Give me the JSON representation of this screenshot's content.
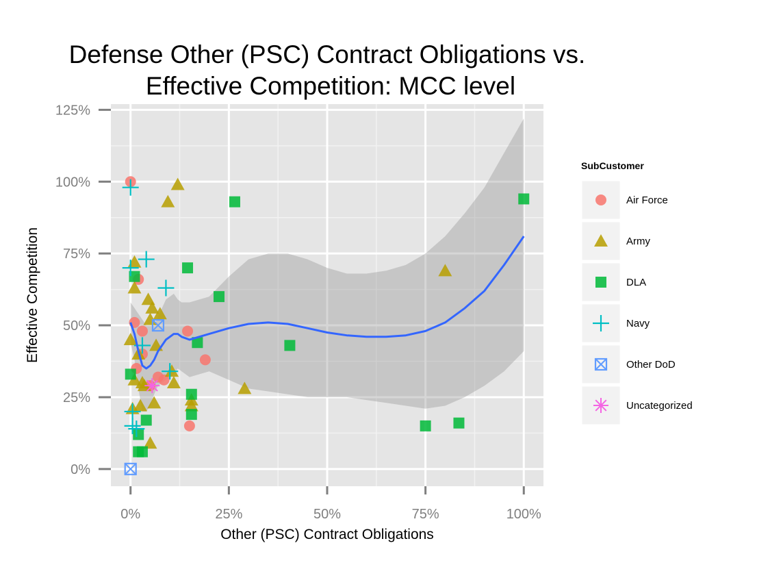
{
  "chart_data": {
    "type": "scatter",
    "title_line1": "Defense Other (PSC) Contract Obligations vs.",
    "title_line2": "Effective Competition: MCC level",
    "xlabel": "Other (PSC) Contract Obligations",
    "ylabel": "Effective Competition",
    "xlim": [
      -0.05,
      1.05
    ],
    "ylim": [
      -0.06,
      1.27
    ],
    "x_ticks": [
      0,
      0.25,
      0.5,
      0.75,
      1.0
    ],
    "x_tick_labels": [
      "0%",
      "25%",
      "50%",
      "75%",
      "100%"
    ],
    "y_ticks": [
      0,
      0.25,
      0.5,
      0.75,
      1.0,
      1.25
    ],
    "y_tick_labels": [
      "0%",
      "25%",
      "50%",
      "75%",
      "100%",
      "125%"
    ],
    "grid": true,
    "legend_title": "SubCustomer",
    "legend_position": "right",
    "series": [
      {
        "name": "Air Force",
        "shape": "circle",
        "color": "#F8766D",
        "points": [
          [
            0.0,
            1.0
          ],
          [
            0.02,
            0.66
          ],
          [
            0.01,
            0.51
          ],
          [
            0.03,
            0.48
          ],
          [
            0.03,
            0.4
          ],
          [
            0.015,
            0.35
          ],
          [
            0.05,
            0.29
          ],
          [
            0.07,
            0.32
          ],
          [
            0.085,
            0.31
          ],
          [
            0.145,
            0.48
          ],
          [
            0.19,
            0.38
          ],
          [
            0.15,
            0.15
          ]
        ]
      },
      {
        "name": "Army",
        "shape": "triangle",
        "color": "#B79F00",
        "points": [
          [
            0.12,
            0.99
          ],
          [
            0.095,
            0.93
          ],
          [
            0.01,
            0.72
          ],
          [
            0.01,
            0.63
          ],
          [
            0.045,
            0.59
          ],
          [
            0.055,
            0.56
          ],
          [
            0.075,
            0.54
          ],
          [
            0.05,
            0.52
          ],
          [
            0.0,
            0.45
          ],
          [
            0.065,
            0.43
          ],
          [
            0.03,
            0.3
          ],
          [
            0.01,
            0.31
          ],
          [
            0.02,
            0.4
          ],
          [
            0.11,
            0.3
          ],
          [
            0.035,
            0.29
          ],
          [
            0.105,
            0.34
          ],
          [
            0.06,
            0.23
          ],
          [
            0.025,
            0.22
          ],
          [
            0.005,
            0.21
          ],
          [
            0.05,
            0.09
          ],
          [
            0.155,
            0.22
          ],
          [
            0.155,
            0.24
          ],
          [
            0.29,
            0.28
          ],
          [
            0.8,
            0.69
          ]
        ]
      },
      {
        "name": "DLA",
        "shape": "square",
        "color": "#00BA38",
        "points": [
          [
            0.265,
            0.93
          ],
          [
            0.145,
            0.7
          ],
          [
            0.225,
            0.6
          ],
          [
            0.17,
            0.44
          ],
          [
            0.405,
            0.43
          ],
          [
            0.0,
            0.33
          ],
          [
            0.01,
            0.67
          ],
          [
            0.04,
            0.17
          ],
          [
            0.02,
            0.12
          ],
          [
            0.02,
            0.06
          ],
          [
            0.03,
            0.06
          ],
          [
            0.155,
            0.26
          ],
          [
            0.155,
            0.19
          ],
          [
            0.75,
            0.15
          ],
          [
            0.835,
            0.16
          ],
          [
            1.0,
            0.94
          ]
        ]
      },
      {
        "name": "Navy",
        "shape": "plus",
        "color": "#00BFC4",
        "points": [
          [
            0.0,
            0.98
          ],
          [
            0.04,
            0.73
          ],
          [
            0.0,
            0.7
          ],
          [
            0.09,
            0.63
          ],
          [
            0.03,
            0.43
          ],
          [
            0.1,
            0.34
          ],
          [
            0.005,
            0.2
          ],
          [
            0.005,
            0.15
          ],
          [
            0.015,
            0.14
          ]
        ]
      },
      {
        "name": "Other DoD",
        "shape": "boxx",
        "color": "#619CFF",
        "points": [
          [
            0.07,
            0.5
          ],
          [
            0.0,
            0.0
          ]
        ]
      },
      {
        "name": "Uncategorized",
        "shape": "star",
        "color": "#F564E3",
        "points": [
          [
            0.055,
            0.29
          ]
        ]
      }
    ],
    "smooth": {
      "color": "#3366FF",
      "x": [
        0.0,
        0.01,
        0.02,
        0.03,
        0.04,
        0.05,
        0.06,
        0.07,
        0.08,
        0.09,
        0.1,
        0.11,
        0.12,
        0.13,
        0.15,
        0.2,
        0.25,
        0.3,
        0.35,
        0.4,
        0.45,
        0.5,
        0.55,
        0.6,
        0.65,
        0.7,
        0.75,
        0.8,
        0.85,
        0.9,
        0.95,
        1.0
      ],
      "y": [
        0.51,
        0.47,
        0.41,
        0.36,
        0.35,
        0.36,
        0.38,
        0.41,
        0.43,
        0.45,
        0.46,
        0.47,
        0.47,
        0.46,
        0.45,
        0.47,
        0.49,
        0.505,
        0.51,
        0.505,
        0.49,
        0.475,
        0.465,
        0.46,
        0.46,
        0.465,
        0.48,
        0.51,
        0.56,
        0.62,
        0.71,
        0.81
      ],
      "ci_upper": [
        0.58,
        0.56,
        0.54,
        0.52,
        0.5,
        0.5,
        0.5,
        0.53,
        0.56,
        0.59,
        0.6,
        0.61,
        0.59,
        0.58,
        0.58,
        0.6,
        0.67,
        0.73,
        0.75,
        0.75,
        0.73,
        0.7,
        0.68,
        0.68,
        0.69,
        0.71,
        0.75,
        0.81,
        0.89,
        0.98,
        1.1,
        1.22
      ],
      "ci_lower": [
        0.44,
        0.38,
        0.28,
        0.2,
        0.2,
        0.22,
        0.26,
        0.29,
        0.3,
        0.31,
        0.32,
        0.33,
        0.35,
        0.34,
        0.32,
        0.34,
        0.31,
        0.28,
        0.27,
        0.26,
        0.25,
        0.25,
        0.25,
        0.24,
        0.23,
        0.22,
        0.21,
        0.22,
        0.25,
        0.29,
        0.34,
        0.41
      ]
    }
  }
}
